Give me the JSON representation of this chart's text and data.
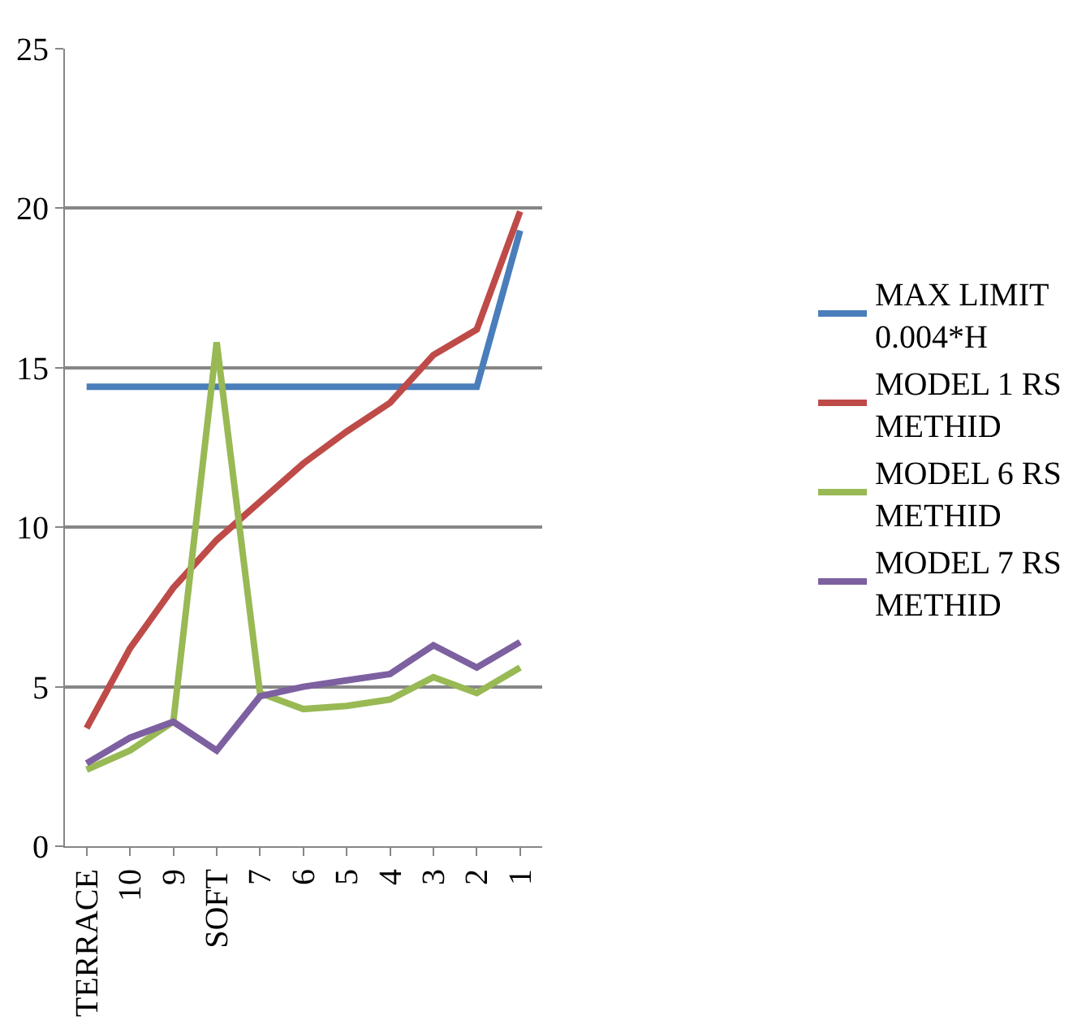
{
  "chart_data": {
    "type": "line",
    "categories": [
      "TERRACE",
      "10",
      "9",
      "SOFT",
      "7",
      "6",
      "5",
      "4",
      "3",
      "2",
      "1"
    ],
    "series": [
      {
        "name": "MAX LIMIT 0.004*H",
        "color": "#4a7ebb",
        "values": [
          14.4,
          14.4,
          14.4,
          14.4,
          14.4,
          14.4,
          14.4,
          14.4,
          14.4,
          14.4,
          19.3
        ]
      },
      {
        "name": "MODEL 1 RS METHID",
        "color": "#be4b48",
        "values": [
          3.7,
          6.2,
          8.1,
          9.6,
          10.8,
          12.0,
          13.0,
          13.9,
          15.4,
          16.2,
          19.9
        ]
      },
      {
        "name": "MODEL 6 RS METHID",
        "color": "#98b954",
        "values": [
          2.4,
          3.0,
          3.9,
          15.8,
          4.8,
          4.3,
          4.4,
          4.6,
          5.3,
          4.8,
          5.6
        ]
      },
      {
        "name": "MODEL 7 RS METHID",
        "color": "#7d60a0",
        "values": [
          2.6,
          3.4,
          3.9,
          3.0,
          4.7,
          5.0,
          5.2,
          5.4,
          6.3,
          5.6,
          6.4
        ]
      }
    ],
    "ylim": [
      0,
      25
    ],
    "yticks": [
      0,
      5,
      10,
      15,
      20,
      25
    ],
    "grid": "y",
    "legend": "right",
    "marker": "none",
    "line_style": "solid"
  }
}
